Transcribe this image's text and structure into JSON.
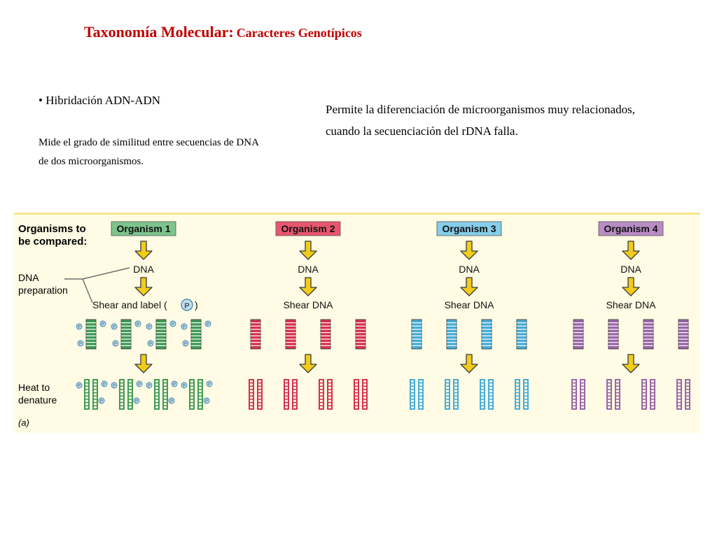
{
  "header": {
    "title_main": "Taxonomía Molecular:",
    "title_sub": "Caracteres Genotípicos"
  },
  "content": {
    "bullet": "• Hibridación ADN-ADN",
    "description_line1": "Mide el grado de similitud entre secuencias de DNA",
    "description_line2": "de dos microorganismos.",
    "note_line1": "Permite la diferenciación de microorganismos muy relacionados,",
    "note_line2": "cuando la secuenciación del rDNA falla."
  },
  "figure": {
    "left_labels": {
      "organisms_line1": "Organisms to",
      "organisms_line2": "be compared:",
      "prep_line1": "DNA",
      "prep_line2": "preparation",
      "heat_line1": "Heat to",
      "heat_line2": "denature",
      "panel": "(a)"
    },
    "organisms": [
      {
        "name": "Organism 1",
        "dna": "DNA",
        "step": "Shear and label (",
        "step_close": ")",
        "label_symbol": "P",
        "box_color": "#7dc48c",
        "strand_color": "#3f9a55"
      },
      {
        "name": "Organism 2",
        "dna": "DNA",
        "step": "Shear DNA",
        "box_color": "#e8566e",
        "strand_color": "#d8314e"
      },
      {
        "name": "Organism 3",
        "dna": "DNA",
        "step": "Shear DNA",
        "box_color": "#86cdea",
        "strand_color": "#46acd8"
      },
      {
        "name": "Organism 4",
        "dna": "DNA",
        "step": "Shear DNA",
        "box_color": "#b98cc5",
        "strand_color": "#9a66a8"
      }
    ],
    "arrow_color": "#f2cc1a"
  }
}
